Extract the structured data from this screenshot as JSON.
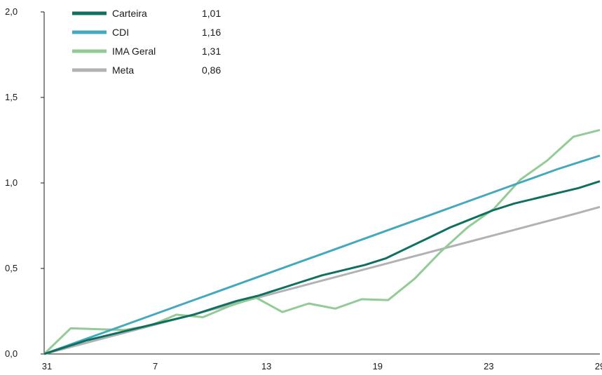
{
  "chart_data": {
    "type": "line",
    "x_ticks": [
      "31",
      "7",
      "13",
      "19",
      "23",
      "29"
    ],
    "x_tick_index": [
      0,
      6,
      12,
      18,
      24,
      30
    ],
    "ylim": [
      0,
      2
    ],
    "y_ticks": [
      {
        "value": 0,
        "label": "0,0"
      },
      {
        "value": 0.5,
        "label": "0,5"
      },
      {
        "value": 1,
        "label": "1,0"
      },
      {
        "value": 1.5,
        "label": "1,5"
      },
      {
        "value": 2,
        "label": "2,0"
      }
    ],
    "grid": false,
    "legend_position": "top-left",
    "series": [
      {
        "name": "Carteira",
        "legend_value": "1,01",
        "color": "#0f7060",
        "values": [
          0,
          0.04,
          0.08,
          0.11,
          0.14,
          0.17,
          0.2,
          0.23,
          0.27,
          0.31,
          0.34,
          0.38,
          0.42,
          0.46,
          0.49,
          0.52,
          0.56,
          0.62,
          0.68,
          0.74,
          0.79,
          0.84,
          0.88,
          0.91,
          0.94,
          0.97,
          1.01
        ]
      },
      {
        "name": "CDI",
        "legend_value": "1,16",
        "color": "#45a8bf",
        "values": [
          0,
          0.045,
          0.09,
          0.135,
          0.18,
          0.225,
          0.27,
          0.315,
          0.36,
          0.405,
          0.45,
          0.495,
          0.54,
          0.585,
          0.63,
          0.675,
          0.72,
          0.765,
          0.81,
          0.855,
          0.9,
          0.945,
          0.99,
          1.035,
          1.08,
          1.12,
          1.16
        ]
      },
      {
        "name": "IMA Geral",
        "legend_value": "1,31",
        "color": "#93cb96",
        "values": [
          0,
          0.15,
          0.145,
          0.14,
          0.165,
          0.23,
          0.215,
          0.28,
          0.33,
          0.245,
          0.295,
          0.265,
          0.32,
          0.315,
          0.44,
          0.6,
          0.74,
          0.85,
          1.02,
          1.13,
          1.27,
          1.31
        ]
      },
      {
        "name": "Meta",
        "legend_value": "0,86",
        "color": "#b2b2b4",
        "values": [
          0,
          0.033,
          0.066,
          0.099,
          0.132,
          0.165,
          0.198,
          0.231,
          0.264,
          0.297,
          0.33,
          0.363,
          0.396,
          0.429,
          0.462,
          0.495,
          0.528,
          0.561,
          0.594,
          0.627,
          0.66,
          0.693,
          0.726,
          0.759,
          0.792,
          0.825,
          0.86
        ]
      }
    ]
  }
}
